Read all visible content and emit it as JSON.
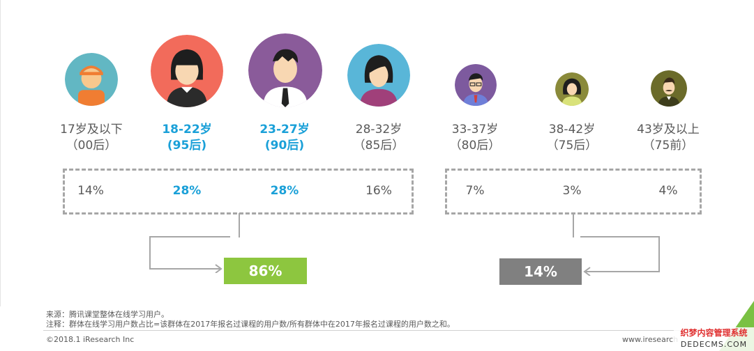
{
  "chart_data": {
    "type": "table",
    "categories": [
      {
        "age": "17岁及以下",
        "gen": "（00后）",
        "value": "14%"
      },
      {
        "age": "18-22岁",
        "gen": "(95后)",
        "value": "28%"
      },
      {
        "age": "23-27岁",
        "gen": "(90后)",
        "value": "28%"
      },
      {
        "age": "28-32岁",
        "gen": "（85后）",
        "value": "16%"
      },
      {
        "age": "33-37岁",
        "gen": "（80后）",
        "value": "7%"
      },
      {
        "age": "38-42岁",
        "gen": "（75后）",
        "value": "3%"
      },
      {
        "age": "43岁及以上",
        "gen": "（75前）",
        "value": "4%"
      }
    ],
    "groups": [
      {
        "label": "86%",
        "color": "#8dc63f"
      },
      {
        "label": "14%",
        "color": "#808080"
      }
    ]
  },
  "colors": {
    "highlight": "#1aa0d8",
    "text": "#595959",
    "green": "#8dc63f",
    "gray": "#808080"
  },
  "notes": {
    "source": "来源：腾讯课堂整体在线学习用户。",
    "remark": "注释：群体在线学习用户数占比=该群体在2017年报名过课程的用户数/所有群体中在2017年报名过课程的用户数之和。"
  },
  "footer": {
    "copyright": "©2018.1 iResearch Inc",
    "site": "www.iresearch"
  },
  "watermark": {
    "line1": "织梦内容管理系统",
    "line2": "DEDECMS.COM"
  }
}
